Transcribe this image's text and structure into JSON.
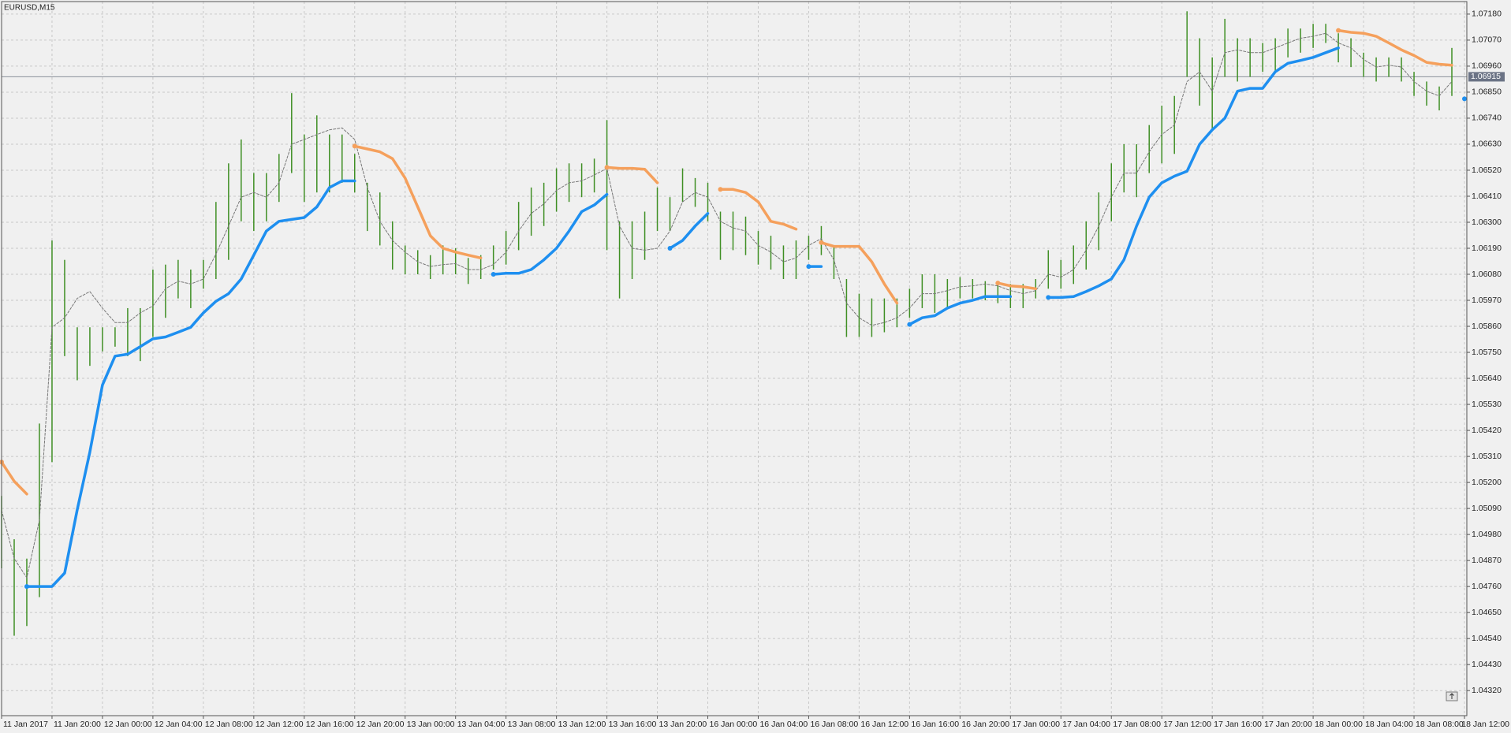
{
  "chart_data": {
    "type": "hl-bars",
    "title": "EURUSD,M15",
    "bar_color": "#3f8f24",
    "grid": true,
    "xlim": [
      0,
      116
    ],
    "ylim": [
      1.04214,
      1.07233
    ],
    "xticks": [
      {
        "value": 0,
        "label": "11 Jan 2017"
      },
      {
        "value": 4,
        "label": "11 Jan 20:00"
      },
      {
        "value": 8,
        "label": "12 Jan 00:00"
      },
      {
        "value": 12,
        "label": "12 Jan 04:00"
      },
      {
        "value": 16,
        "label": "12 Jan 08:00"
      },
      {
        "value": 20,
        "label": "12 Jan 12:00"
      },
      {
        "value": 24,
        "label": "12 Jan 16:00"
      },
      {
        "value": 28,
        "label": "12 Jan 20:00"
      },
      {
        "value": 32,
        "label": "13 Jan 00:00"
      },
      {
        "value": 36,
        "label": "13 Jan 04:00"
      },
      {
        "value": 40,
        "label": "13 Jan 08:00"
      },
      {
        "value": 44,
        "label": "13 Jan 12:00"
      },
      {
        "value": 48,
        "label": "13 Jan 16:00"
      },
      {
        "value": 52,
        "label": "13 Jan 20:00"
      },
      {
        "value": 56,
        "label": "16 Jan 00:00"
      },
      {
        "value": 60,
        "label": "16 Jan 04:00"
      },
      {
        "value": 64,
        "label": "16 Jan 08:00"
      },
      {
        "value": 68,
        "label": "16 Jan 12:00"
      },
      {
        "value": 72,
        "label": "16 Jan 16:00"
      },
      {
        "value": 76,
        "label": "16 Jan 20:00"
      },
      {
        "value": 80,
        "label": "17 Jan 00:00"
      },
      {
        "value": 84,
        "label": "17 Jan 04:00"
      },
      {
        "value": 88,
        "label": "17 Jan 08:00"
      },
      {
        "value": 92,
        "label": "17 Jan 12:00"
      },
      {
        "value": 96,
        "label": "17 Jan 16:00"
      },
      {
        "value": 100,
        "label": "17 Jan 20:00"
      },
      {
        "value": 104,
        "label": "18 Jan 00:00"
      },
      {
        "value": 108,
        "label": "18 Jan 04:00"
      },
      {
        "value": 112,
        "label": "18 Jan 08:00"
      },
      {
        "value": 116,
        "label": "18 Jan 12:00"
      }
    ],
    "yticks": [
      {
        "value": 1.0718,
        "label": "1.07180"
      },
      {
        "value": 1.0707,
        "label": "1.07070"
      },
      {
        "value": 1.0696,
        "label": "1.06960"
      },
      {
        "value": 1.0685,
        "label": "1.06850"
      },
      {
        "value": 1.0674,
        "label": "1.06740"
      },
      {
        "value": 1.0663,
        "label": "1.06630"
      },
      {
        "value": 1.0652,
        "label": "1.06520"
      },
      {
        "value": 1.0641,
        "label": "1.06410"
      },
      {
        "value": 1.063,
        "label": "1.06300"
      },
      {
        "value": 1.0619,
        "label": "1.06190"
      },
      {
        "value": 1.0608,
        "label": "1.06080"
      },
      {
        "value": 1.0597,
        "label": "1.05970"
      },
      {
        "value": 1.0586,
        "label": "1.05860"
      },
      {
        "value": 1.0575,
        "label": "1.05750"
      },
      {
        "value": 1.0564,
        "label": "1.05640"
      },
      {
        "value": 1.0553,
        "label": "1.05530"
      },
      {
        "value": 1.0542,
        "label": "1.05420"
      },
      {
        "value": 1.0531,
        "label": "1.05310"
      },
      {
        "value": 1.052,
        "label": "1.05200"
      },
      {
        "value": 1.0509,
        "label": "1.05090"
      },
      {
        "value": 1.0498,
        "label": "1.04980"
      },
      {
        "value": 1.0487,
        "label": "1.04870"
      },
      {
        "value": 1.0476,
        "label": "1.04760"
      },
      {
        "value": 1.0465,
        "label": "1.04650"
      },
      {
        "value": 1.0454,
        "label": "1.04540"
      },
      {
        "value": 1.0443,
        "label": "1.04430"
      },
      {
        "value": 1.0432,
        "label": "1.04320"
      }
    ],
    "current_price": {
      "value": 1.06915,
      "label": "1.06915"
    },
    "high": [
      1.05143,
      1.0496,
      1.04878,
      1.05449,
      1.06223,
      1.06141,
      1.05856,
      1.05856,
      1.05856,
      1.05856,
      1.05937,
      1.05937,
      1.061,
      1.06121,
      1.06141,
      1.061,
      1.06141,
      1.06386,
      1.06549,
      1.0665,
      1.06508,
      1.06508,
      1.06589,
      1.06846,
      1.06671,
      1.06752,
      1.06671,
      1.06671,
      1.06589,
      1.06467,
      1.06426,
      1.06304,
      1.06202,
      1.06182,
      1.06161,
      1.06202,
      1.0619,
      1.06149,
      1.06161,
      1.06202,
      1.06263,
      1.06386,
      1.06447,
      1.06467,
      1.06528,
      1.06549,
      1.06549,
      1.06569,
      1.06732,
      1.06304,
      1.06304,
      1.06345,
      1.06447,
      1.06406,
      1.06528,
      1.06487,
      1.06467,
      1.06345,
      1.06345,
      1.06324,
      1.06263,
      1.06243,
      1.06202,
      1.06223,
      1.06243,
      1.06284,
      1.06202,
      1.0606,
      1.05998,
      1.05978,
      1.05978,
      1.05978,
      1.06019,
      1.0608,
      1.0608,
      1.0606,
      1.06068,
      1.0606,
      1.06051,
      1.06051,
      1.06039,
      1.06039,
      1.0606,
      1.06182,
      1.06141,
      1.06202,
      1.06304,
      1.06426,
      1.06549,
      1.0663,
      1.0663,
      1.06711,
      1.06793,
      1.06834,
      1.07192,
      1.07078,
      1.06997,
      1.0716,
      1.07078,
      1.07078,
      1.07058,
      1.07078,
      1.07119,
      1.07119,
      1.07139,
      1.07139,
      1.07099,
      1.07078,
      1.07017,
      1.06997,
      1.06997,
      1.06997,
      1.06936,
      1.06895,
      1.06874,
      1.07037
    ],
    "low": [
      1.04837,
      1.04552,
      1.04593,
      1.04715,
      1.05286,
      1.05734,
      1.05632,
      1.05693,
      1.05754,
      1.05774,
      1.05734,
      1.05713,
      1.05815,
      1.05896,
      1.05978,
      1.05937,
      1.06019,
      1.0606,
      1.06141,
      1.06304,
      1.06263,
      1.06304,
      1.06386,
      1.06508,
      1.06386,
      1.06426,
      1.06426,
      1.06467,
      1.06426,
      1.06263,
      1.06202,
      1.061,
      1.0608,
      1.0608,
      1.0606,
      1.0608,
      1.0608,
      1.06039,
      1.0606,
      1.061,
      1.06121,
      1.06182,
      1.06243,
      1.06284,
      1.06345,
      1.06386,
      1.06406,
      1.06426,
      1.06182,
      1.05978,
      1.0606,
      1.06141,
      1.06263,
      1.06263,
      1.06386,
      1.06365,
      1.06304,
      1.06141,
      1.06182,
      1.06161,
      1.06121,
      1.061,
      1.0606,
      1.0606,
      1.06141,
      1.06161,
      1.0606,
      1.05815,
      1.05815,
      1.05815,
      1.05835,
      1.05856,
      1.05896,
      1.05937,
      1.05917,
      1.05937,
      1.05978,
      1.05978,
      1.0597,
      1.05958,
      1.05937,
      1.05937,
      1.05978,
      1.06019,
      1.06019,
      1.06039,
      1.061,
      1.06182,
      1.06304,
      1.06426,
      1.06406,
      1.06508,
      1.06549,
      1.06589,
      1.06915,
      1.06793,
      1.06691,
      1.06915,
      1.06895,
      1.06915,
      1.06936,
      1.06936,
      1.06997,
      1.07017,
      1.07037,
      1.07058,
      1.06976,
      1.06956,
      1.06915,
      1.06895,
      1.06915,
      1.06895,
      1.06834,
      1.06793,
      1.06773,
      1.06834
    ],
    "lines": [
      {
        "color": "#777777",
        "style": "dashed",
        "values": [
          1.05082,
          1.04878,
          1.04797,
          1.05041,
          1.05856,
          1.05896,
          1.05978,
          1.06007,
          1.05937,
          1.05876,
          1.05876,
          1.05917,
          1.05946,
          1.06019,
          1.06051,
          1.06039,
          1.0606,
          1.06166,
          1.06284,
          1.06406,
          1.06426,
          1.06406,
          1.06467,
          1.0663,
          1.0665,
          1.06671,
          1.06691,
          1.06699,
          1.0665,
          1.06447,
          1.06304,
          1.06223,
          1.06174,
          1.06133,
          1.06113,
          1.06121,
          1.06125,
          1.061,
          1.061,
          1.06121,
          1.06174,
          1.06263,
          1.06337,
          1.06378,
          1.06434,
          1.06467,
          1.06475,
          1.065,
          1.06528,
          1.06284,
          1.0619,
          1.06182,
          1.0619,
          1.06263,
          1.06386,
          1.06426,
          1.06406,
          1.06304,
          1.06276,
          1.06263,
          1.06202,
          1.06174,
          1.06133,
          1.06149,
          1.06202,
          1.06231,
          1.06141,
          1.05958,
          1.05896,
          1.05864,
          1.05876,
          1.05896,
          1.05937,
          1.05998,
          1.05998,
          1.06011,
          1.06027,
          1.06031,
          1.06039,
          1.06031,
          1.06011,
          1.05998,
          1.06011,
          1.0608,
          1.06068,
          1.061,
          1.06182,
          1.06284,
          1.06406,
          1.06508,
          1.06508,
          1.06598,
          1.06671,
          1.06711,
          1.06895,
          1.06936,
          1.06854,
          1.07017,
          1.07029,
          1.07017,
          1.07017,
          1.07037,
          1.07058,
          1.07078,
          1.07086,
          1.07099,
          1.07058,
          1.07037,
          1.06988,
          1.06956,
          1.06964,
          1.06956,
          1.06895,
          1.06854,
          1.06834,
          1.06895
        ]
      },
      {
        "color": "#f5a05c",
        "style": "solid",
        "values": [
          1.05286,
          1.05205,
          1.05151,
          null,
          null,
          null,
          null,
          null,
          null,
          null,
          null,
          null,
          null,
          null,
          null,
          null,
          null,
          null,
          null,
          null,
          null,
          null,
          null,
          null,
          null,
          null,
          null,
          null,
          1.06622,
          1.0661,
          1.06598,
          1.06569,
          1.06487,
          1.06365,
          1.06243,
          1.0619,
          1.06174,
          1.06161,
          1.06149,
          null,
          null,
          null,
          null,
          null,
          null,
          null,
          null,
          null,
          1.06532,
          1.06528,
          1.06528,
          1.06524,
          1.06467,
          null,
          null,
          null,
          null,
          1.06439,
          1.06439,
          1.06426,
          1.06386,
          1.06304,
          1.06292,
          1.06271,
          null,
          1.06214,
          1.06198,
          1.06198,
          1.06198,
          1.06133,
          1.06039,
          1.05958,
          null,
          null,
          null,
          null,
          null,
          null,
          null,
          1.06043,
          1.06031,
          1.06027,
          1.06019,
          null,
          null,
          null,
          null,
          null,
          null,
          null,
          null,
          null,
          null,
          null,
          null,
          null,
          null,
          null,
          null,
          null,
          null,
          null,
          null,
          null,
          null,
          null,
          1.07111,
          1.07103,
          1.07099,
          1.07086,
          1.07058,
          1.07029,
          1.07005,
          1.06976,
          1.06968,
          1.06964
        ]
      },
      {
        "color": "#1e8ff0",
        "style": "solid",
        "values": [
          null,
          null,
          1.0476,
          1.0476,
          1.0476,
          1.04817,
          1.05084,
          1.05328,
          1.05612,
          1.05734,
          1.05742,
          1.05774,
          1.05807,
          1.05815,
          1.05835,
          1.05856,
          1.05917,
          1.05966,
          1.05998,
          1.0606,
          1.06161,
          1.06263,
          1.06304,
          1.06312,
          1.0632,
          1.06365,
          1.06447,
          1.06475,
          1.06475,
          null,
          null,
          null,
          null,
          null,
          null,
          null,
          null,
          null,
          null,
          1.0608,
          1.06084,
          1.06084,
          1.061,
          1.06141,
          1.0619,
          1.06263,
          1.06345,
          1.06373,
          1.06418,
          null,
          null,
          null,
          null,
          1.0619,
          1.06223,
          1.06284,
          1.06337,
          null,
          null,
          null,
          null,
          null,
          null,
          null,
          1.06113,
          1.06113,
          null,
          null,
          null,
          null,
          null,
          null,
          1.05868,
          1.05896,
          1.05905,
          1.05937,
          1.05958,
          1.0597,
          1.05986,
          1.05986,
          1.05986,
          null,
          null,
          1.05982,
          1.05982,
          1.05986,
          1.06007,
          1.06031,
          1.0606,
          1.06141,
          1.06284,
          1.06406,
          1.06467,
          1.06495,
          1.06516,
          1.0663,
          1.06691,
          1.0674,
          1.06854,
          1.06866,
          1.06866,
          1.06936,
          1.06972,
          1.06984,
          1.06997,
          1.07017,
          1.07037,
          null,
          null,
          null,
          null,
          null,
          null,
          null,
          null,
          null,
          1.06822
        ]
      }
    ]
  }
}
